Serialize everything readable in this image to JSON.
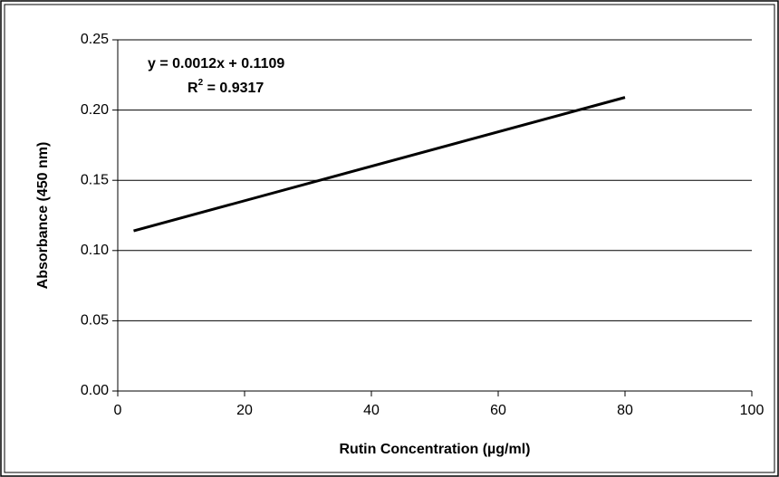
{
  "chart_data": {
    "type": "line",
    "x_label": "Rutin Concentration (µg/ml)",
    "y_label": "Absorbance (450 nm)",
    "annotations": {
      "equation": "y = 0.0012x + 0.1109",
      "r2": {
        "base": "R",
        "sup": "2",
        "rest": " = 0.9317"
      }
    },
    "series": [
      {
        "color": "#000000",
        "x": [
          2.5,
          80
        ],
        "values": [
          0.114,
          0.209
        ]
      }
    ],
    "xlim": [
      0,
      100
    ],
    "xticks": [
      0,
      20,
      40,
      60,
      80,
      100
    ],
    "ylim": [
      0,
      0.25
    ],
    "yticks": [
      {
        "value": 0,
        "label": "0.00"
      },
      {
        "value": 0.05,
        "label": "0.05"
      },
      {
        "value": 0.1,
        "label": "0.10"
      },
      {
        "value": 0.15,
        "label": "0.15"
      },
      {
        "value": 0.2,
        "label": "0.20"
      },
      {
        "value": 0.25,
        "label": "0.25"
      }
    ],
    "grid": true
  }
}
